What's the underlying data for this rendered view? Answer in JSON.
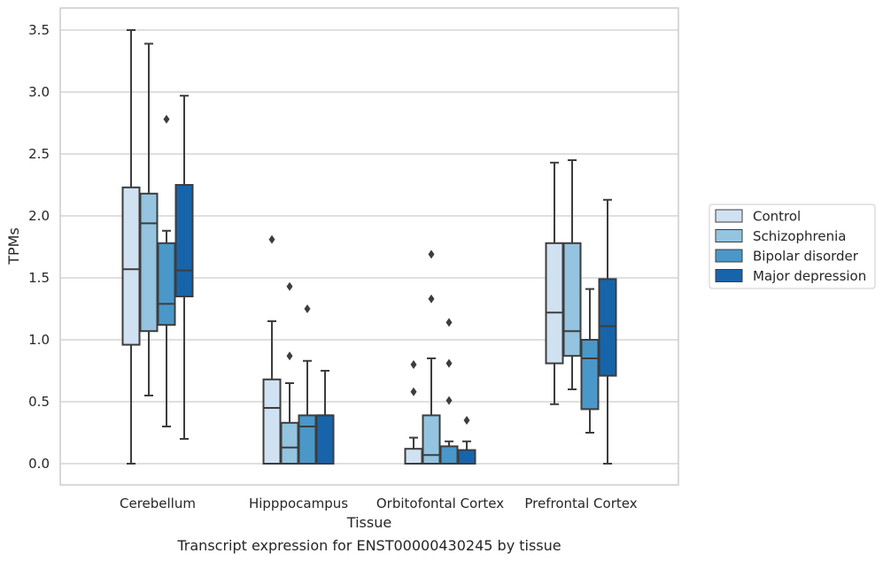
{
  "chart_data": {
    "type": "box",
    "xlabel": "Tissue",
    "ylabel": "TPMs",
    "caption": "Transcript expression for ENST00000430245 by tissue",
    "ylim": [
      -0.17,
      3.67
    ],
    "yticks": [
      "0.0",
      "0.5",
      "1.0",
      "1.5",
      "2.0",
      "2.5",
      "3.0",
      "3.5"
    ],
    "grid": "horizontal",
    "legend_position": "right",
    "categories": [
      "Cerebellum",
      "Hipppocampus",
      "Orbitofontal Cortex",
      "Prefrontal Cortex"
    ],
    "series": [
      {
        "name": "Control",
        "color": "#d0e1f2",
        "boxes": [
          {
            "whislo": 0.0,
            "q1": 0.96,
            "med": 1.57,
            "q3": 2.23,
            "whishi": 3.5,
            "fliers": []
          },
          {
            "whislo": 0.0,
            "q1": 0.0,
            "med": 0.45,
            "q3": 0.68,
            "whishi": 1.15,
            "fliers": [
              1.81
            ]
          },
          {
            "whislo": 0.0,
            "q1": 0.0,
            "med": 0.0,
            "q3": 0.12,
            "whishi": 0.21,
            "fliers": [
              0.58,
              0.8
            ]
          },
          {
            "whislo": 0.48,
            "q1": 0.81,
            "med": 1.22,
            "q3": 1.78,
            "whishi": 2.43,
            "fliers": []
          }
        ]
      },
      {
        "name": "Schizophrenia",
        "color": "#94c4df",
        "boxes": [
          {
            "whislo": 0.55,
            "q1": 1.07,
            "med": 1.94,
            "q3": 2.18,
            "whishi": 3.39,
            "fliers": []
          },
          {
            "whislo": 0.0,
            "q1": 0.0,
            "med": 0.13,
            "q3": 0.33,
            "whishi": 0.65,
            "fliers": [
              0.87,
              1.43
            ]
          },
          {
            "whislo": 0.0,
            "q1": 0.0,
            "med": 0.07,
            "q3": 0.39,
            "whishi": 0.85,
            "fliers": [
              1.33,
              1.69
            ]
          },
          {
            "whislo": 0.6,
            "q1": 0.87,
            "med": 1.07,
            "q3": 1.78,
            "whishi": 2.45,
            "fliers": []
          }
        ]
      },
      {
        "name": "Bipolar disorder",
        "color": "#4a98c9",
        "boxes": [
          {
            "whislo": 0.3,
            "q1": 1.12,
            "med": 1.29,
            "q3": 1.78,
            "whishi": 1.88,
            "fliers": [
              2.78
            ]
          },
          {
            "whislo": 0.0,
            "q1": 0.0,
            "med": 0.3,
            "q3": 0.39,
            "whishi": 0.83,
            "fliers": [
              1.25
            ]
          },
          {
            "whislo": 0.0,
            "q1": 0.0,
            "med": 0.0,
            "q3": 0.14,
            "whishi": 0.18,
            "fliers": [
              0.51,
              0.81,
              1.14
            ]
          },
          {
            "whislo": 0.25,
            "q1": 0.44,
            "med": 0.85,
            "q3": 1.0,
            "whishi": 1.41,
            "fliers": []
          }
        ]
      },
      {
        "name": "Major depression",
        "color": "#1764ab",
        "boxes": [
          {
            "whislo": 0.2,
            "q1": 1.35,
            "med": 1.56,
            "q3": 2.25,
            "whishi": 2.97,
            "fliers": []
          },
          {
            "whislo": 0.0,
            "q1": 0.0,
            "med": 0.39,
            "q3": 0.39,
            "whishi": 0.75,
            "fliers": []
          },
          {
            "whislo": 0.0,
            "q1": 0.0,
            "med": 0.0,
            "q3": 0.11,
            "whishi": 0.18,
            "fliers": [
              0.35
            ]
          },
          {
            "whislo": 0.0,
            "q1": 0.71,
            "med": 1.11,
            "q3": 1.49,
            "whishi": 2.13,
            "fliers": []
          }
        ]
      }
    ]
  }
}
